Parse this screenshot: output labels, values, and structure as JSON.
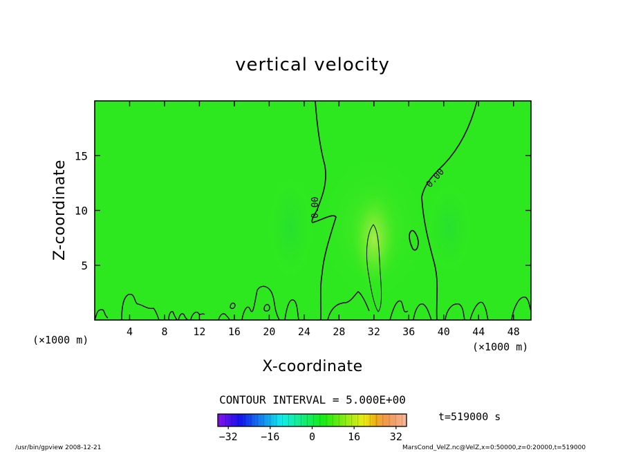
{
  "chart_data": {
    "type": "heatmap",
    "title": "vertical velocity",
    "xlabel": "X-coordinate",
    "ylabel": "Z-coordinate",
    "x_unit": "(×1000 m)",
    "y_unit": "(×1000 m)",
    "xlim": [
      0,
      50
    ],
    "ylim": [
      0,
      20
    ],
    "x_ticks": [
      4,
      8,
      12,
      16,
      20,
      24,
      28,
      32,
      36,
      40,
      44,
      48
    ],
    "y_ticks": [
      5,
      10,
      15
    ],
    "contour_label": "0.00",
    "contour_interval_text": "CONTOUR INTERVAL = 5.000E+00",
    "colorbar": {
      "ticks": [
        -32,
        -16,
        0,
        16,
        32
      ],
      "range": [
        -36,
        36
      ]
    },
    "time_text": "t=519000 s",
    "grid": false
  },
  "footer": {
    "left": "/usr/bin/gpview   2008-12-21",
    "right": "MarsCond_VelZ.nc@VelZ,x=0:50000,z=0:20000,t=519000"
  },
  "colors": {
    "field_background": "#2ee81f",
    "updraft_core": "#aef04a",
    "contour": "#000000"
  }
}
